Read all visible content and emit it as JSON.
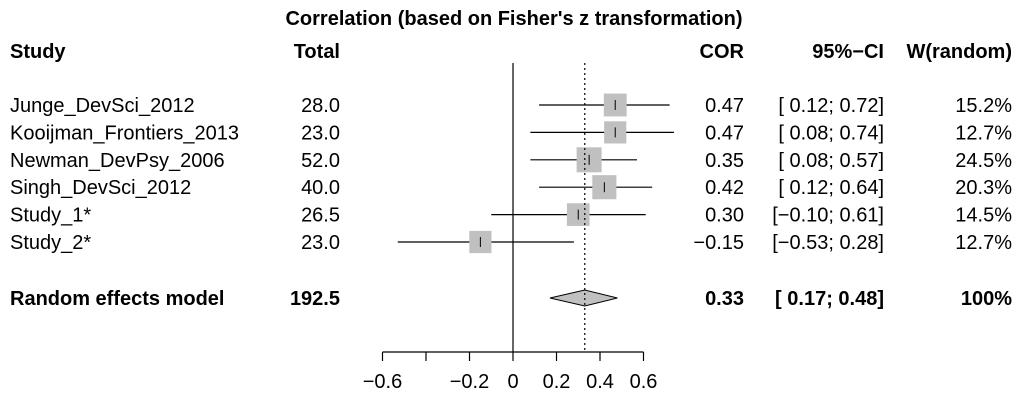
{
  "chart_data": {
    "type": "forest",
    "title": "Correlation (based on Fisher's z transformation)",
    "headers": {
      "study": "Study",
      "total": "Total",
      "effect": "COR",
      "ci": "95%−CI",
      "weight": "W(random)"
    },
    "studies": [
      {
        "name": "Junge_DevSci_2012",
        "total": "28.0",
        "cor": 0.47,
        "lower": 0.12,
        "upper": 0.72,
        "cor_text": "0.47",
        "ci_text": "[ 0.12; 0.72]",
        "weight_text": "15.2%",
        "weight": 15.2
      },
      {
        "name": "Kooijman_Frontiers_2013",
        "total": "23.0",
        "cor": 0.47,
        "lower": 0.08,
        "upper": 0.74,
        "cor_text": "0.47",
        "ci_text": "[ 0.08; 0.74]",
        "weight_text": "12.7%",
        "weight": 12.7
      },
      {
        "name": "Newman_DevPsy_2006",
        "total": "52.0",
        "cor": 0.35,
        "lower": 0.08,
        "upper": 0.57,
        "cor_text": "0.35",
        "ci_text": "[ 0.08; 0.57]",
        "weight_text": "24.5%",
        "weight": 24.5
      },
      {
        "name": "Singh_DevSci_2012",
        "total": "40.0",
        "cor": 0.42,
        "lower": 0.12,
        "upper": 0.64,
        "cor_text": "0.42",
        "ci_text": "[ 0.12; 0.64]",
        "weight_text": "20.3%",
        "weight": 20.3
      },
      {
        "name": "Study_1*",
        "total": "26.5",
        "cor": 0.3,
        "lower": -0.1,
        "upper": 0.61,
        "cor_text": "0.30",
        "ci_text": "[−0.10; 0.61]",
        "weight_text": "14.5%",
        "weight": 14.5
      },
      {
        "name": "Study_2*",
        "total": "23.0",
        "cor": -0.15,
        "lower": -0.53,
        "upper": 0.28,
        "cor_text": "−0.15",
        "ci_text": "[−0.53; 0.28]",
        "weight_text": "12.7%",
        "weight": 12.7
      }
    ],
    "summary": {
      "name": "Random effects model",
      "total": "192.5",
      "cor": 0.33,
      "lower": 0.17,
      "upper": 0.48,
      "cor_text": "0.33",
      "ci_text": "[ 0.17; 0.48]",
      "weight_text": "100%"
    },
    "x_ticks": [
      -0.6,
      -0.2,
      0,
      0.2,
      0.4,
      0.6
    ],
    "x_tick_labels": [
      "−0.6",
      "−0.2",
      "0",
      "0.2",
      "0.4",
      "0.6"
    ],
    "x_minor_ticks": [
      -0.6,
      -0.4,
      -0.2,
      0,
      0.2,
      0.4,
      0.6
    ],
    "xlim": [
      -0.6,
      0.6
    ],
    "reference_line": 0,
    "summary_line": 0.33,
    "colors": {
      "square": "#c0c0c0",
      "diamond": "#c0c0c0",
      "line": "#000000"
    }
  }
}
